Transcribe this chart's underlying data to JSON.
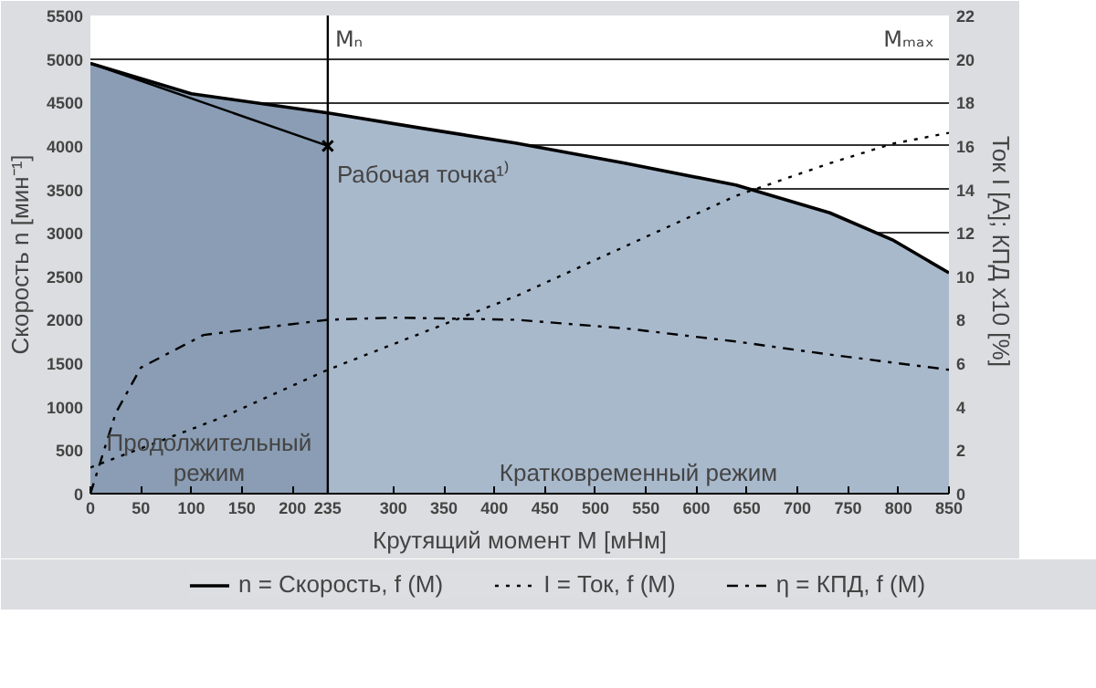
{
  "chart_data": {
    "type": "line",
    "xlabel": "Крутящий момент M [мНм]",
    "ylabel": "Скорость n [мин⁻¹]",
    "y2label": "Ток I [A]; КПД  x10 [%]",
    "xlim": [
      0,
      850
    ],
    "xticks": [
      0,
      50,
      100,
      150,
      200,
      235,
      300,
      350,
      400,
      450,
      500,
      550,
      600,
      650,
      700,
      750,
      800,
      850
    ],
    "ylim": [
      0,
      5500
    ],
    "yticks": [
      0,
      500,
      1000,
      1500,
      2000,
      2500,
      3000,
      3500,
      4000,
      4500,
      5000,
      5500
    ],
    "y2lim": [
      0,
      22
    ],
    "y2ticks": [
      0,
      2,
      4,
      6,
      8,
      10,
      12,
      14,
      16,
      18,
      20,
      22
    ],
    "grid": "y",
    "legend": "bottom",
    "series": [
      {
        "type": "area",
        "color": "#8a9db4",
        "x": [
          0,
          100,
          235
        ],
        "values": [
          4950,
          4600,
          4380
        ]
      },
      {
        "type": "area",
        "color": "#a9b9cc",
        "x": [
          235,
          330,
          422,
          530,
          639,
          732,
          794,
          850
        ],
        "values": [
          4380,
          4200,
          4030,
          3800,
          3550,
          3230,
          2920,
          2540
        ]
      },
      {
        "name": "n = Скорость, f (M)",
        "color": "#000000",
        "line_style": "solid",
        "x": [
          0,
          100,
          235,
          330,
          422,
          530,
          639,
          732,
          794,
          850
        ],
        "values": [
          4950,
          4600,
          4380,
          4200,
          4030,
          3800,
          3550,
          3230,
          2920,
          2540
        ]
      },
      {
        "type": "line",
        "color": "#000000",
        "line_style": "solid",
        "x": [
          0,
          235
        ],
        "values": [
          4950,
          4000
        ]
      },
      {
        "type": "scatter",
        "marker": "cross",
        "color": "#000000",
        "x": [
          235
        ],
        "values": [
          4000
        ]
      },
      {
        "type": "line",
        "name": "I = Ток, f (M)",
        "color": "#000000",
        "line_style": "dotted",
        "axis": "y2",
        "x": [
          0,
          130,
          235,
          422,
          639,
          732,
          794,
          850
        ],
        "values": [
          1.2,
          3.5,
          5.7,
          9.1,
          13.7,
          15.2,
          16.1,
          16.6
        ]
      },
      {
        "type": "line",
        "name": "η = КПД, f (M)",
        "color": "#000000",
        "line_style": "dashdot",
        "axis": "y2",
        "x": [
          0,
          25,
          50,
          112,
          235,
          300,
          422,
          530,
          639,
          732,
          850
        ],
        "values": [
          0,
          3.7,
          5.8,
          7.3,
          8.0,
          8.1,
          8.0,
          7.6,
          7.0,
          6.4,
          5.7
        ]
      }
    ],
    "ref_lines": [
      {
        "axis": "x",
        "value": 235,
        "label": "Mₙ"
      }
    ],
    "annotations": [
      {
        "text": "Рабочая точка¹⁾",
        "x": 235,
        "y": 4000
      },
      "Продолжительный режим",
      "Кратковременный режим",
      "Mₘₐₓ"
    ]
  }
}
